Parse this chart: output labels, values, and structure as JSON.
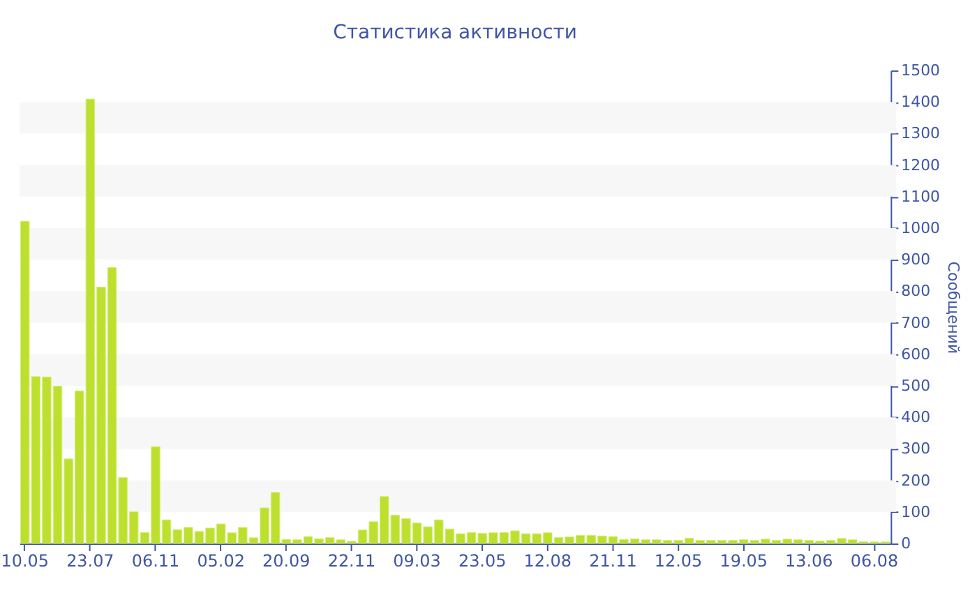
{
  "chart_data": {
    "type": "bar",
    "title": "Статистика активности",
    "ylabel": "Сообщений",
    "categories": [
      "10.05",
      null,
      null,
      null,
      null,
      null,
      "23.07",
      null,
      null,
      null,
      null,
      null,
      "06.11",
      null,
      null,
      null,
      null,
      null,
      "05.02",
      null,
      null,
      null,
      null,
      null,
      "20.09",
      null,
      null,
      null,
      null,
      null,
      "22.11",
      null,
      null,
      null,
      null,
      null,
      "09.03",
      null,
      null,
      null,
      null,
      null,
      "23.05",
      null,
      null,
      null,
      null,
      null,
      "12.08",
      null,
      null,
      null,
      null,
      null,
      "21.11",
      null,
      null,
      null,
      null,
      null,
      "12.05",
      null,
      null,
      null,
      null,
      null,
      "19.05",
      null,
      null,
      null,
      null,
      null,
      "13.06",
      null,
      null,
      null,
      null,
      null,
      "06.08",
      null
    ],
    "values": [
      1022,
      529,
      528,
      499,
      268,
      484,
      1409,
      813,
      875,
      209,
      101,
      35,
      307,
      75,
      44,
      51,
      38,
      49,
      62,
      34,
      51,
      18,
      113,
      162,
      13,
      12,
      22,
      15,
      19,
      12,
      7,
      43,
      69,
      149,
      90,
      79,
      65,
      53,
      75,
      46,
      31,
      35,
      32,
      34,
      35,
      40,
      31,
      31,
      34,
      19,
      21,
      26,
      26,
      24,
      22,
      13,
      15,
      12,
      12,
      10,
      10,
      17,
      10,
      10,
      10,
      10,
      12,
      10,
      14,
      10,
      14,
      12,
      10,
      8,
      10,
      16,
      12,
      6,
      5,
      5
    ],
    "color": "#bde02e",
    "ylim": [
      0,
      1500
    ],
    "yticks": [
      0,
      100,
      200,
      300,
      400,
      500,
      600,
      700,
      800,
      900,
      1000,
      1100,
      1200,
      1300,
      1400,
      1500
    ],
    "bands": [
      {
        "axis": "y",
        "from": 100,
        "to": 200,
        "color": "#f7f7f7"
      },
      {
        "axis": "y",
        "from": 300,
        "to": 400,
        "color": "#f7f7f7"
      },
      {
        "axis": "y",
        "from": 500,
        "to": 600,
        "color": "#f7f7f7"
      },
      {
        "axis": "y",
        "from": 700,
        "to": 800,
        "color": "#f7f7f7"
      },
      {
        "axis": "y",
        "from": 900,
        "to": 1000,
        "color": "#f7f7f7"
      },
      {
        "axis": "y",
        "from": 1100,
        "to": 1200,
        "color": "#f7f7f7"
      },
      {
        "axis": "y",
        "from": 1300,
        "to": 1400,
        "color": "#f7f7f7"
      }
    ]
  }
}
